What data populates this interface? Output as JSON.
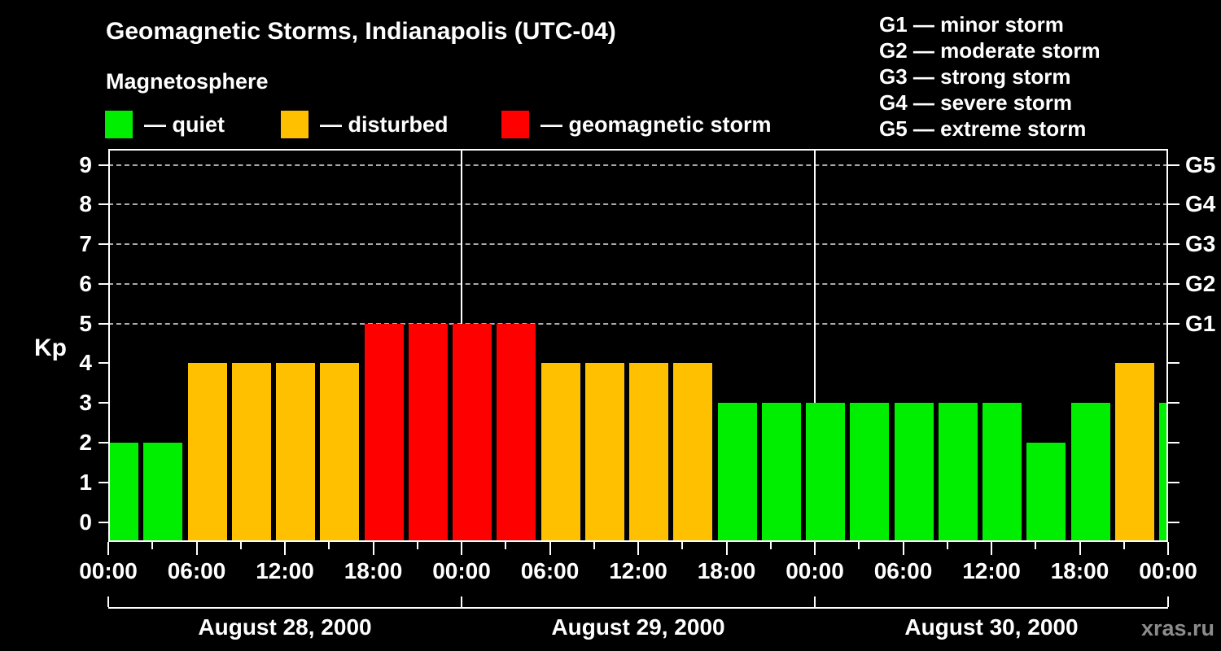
{
  "title": "Geomagnetic Storms, Indianapolis (UTC-04)",
  "subtitle": "Magnetosphere",
  "legend": {
    "items": [
      {
        "name": "quiet",
        "label": "— quiet",
        "color": "#00ee00"
      },
      {
        "name": "disturbed",
        "label": "— disturbed",
        "color": "#ffc000"
      },
      {
        "name": "storm",
        "label": "— geomagnetic storm",
        "color": "#ff0000"
      }
    ]
  },
  "g_scale_legend": [
    "G1 — minor storm",
    "G2 — moderate storm",
    "G3 — strong storm",
    "G4 — severe storm",
    "G5 — extreme storm"
  ],
  "watermark": "xras.ru",
  "chart_data": {
    "type": "bar",
    "title": "Geomagnetic Storms, Indianapolis (UTC-04)",
    "subtitle": "Magnetosphere",
    "xlabel": "",
    "ylabel": "Kp",
    "ylim": [
      0,
      9
    ],
    "yticks": [
      0,
      1,
      2,
      3,
      4,
      5,
      6,
      7,
      8,
      9
    ],
    "grid_levels": [
      5,
      6,
      7,
      8,
      9
    ],
    "grid_style": "dashed",
    "right_axis_labels": [
      {
        "label": "G1",
        "kp": 5
      },
      {
        "label": "G2",
        "kp": 6
      },
      {
        "label": "G3",
        "kp": 7
      },
      {
        "label": "G4",
        "kp": 8
      },
      {
        "label": "G5",
        "kp": 9
      }
    ],
    "days": [
      "August 28, 2000",
      "August 29, 2000",
      "August 30, 2000"
    ],
    "x_tick_labels": [
      "00:00",
      "06:00",
      "12:00",
      "18:00",
      "00:00",
      "06:00",
      "12:00",
      "18:00",
      "00:00",
      "06:00",
      "12:00",
      "18:00",
      "00:00"
    ],
    "hours_per_bar": 3,
    "hours_total": 72,
    "last_bar_clipped": true,
    "values": [
      2,
      2,
      4,
      4,
      4,
      4,
      5,
      5,
      5,
      5,
      4,
      4,
      4,
      4,
      3,
      3,
      3,
      3,
      3,
      3,
      3,
      2,
      3,
      4,
      3
    ],
    "color_rules": {
      "quiet_max_kp": 3,
      "disturbed_kp": 4,
      "storm_min_kp": 5
    },
    "bar_colors": {
      "quiet": "#00ee00",
      "disturbed": "#ffc000",
      "storm": "#ff0000"
    },
    "legend_position": "top-left",
    "background": "#000000",
    "text_color": "#ffffff"
  }
}
